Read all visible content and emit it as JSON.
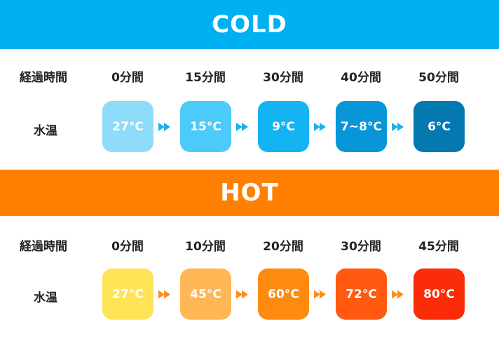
{
  "cold": {
    "title": "COLD",
    "time_header": "経過時間",
    "temp_header": "水温",
    "times": [
      "0分間",
      "15分間",
      "30分間",
      "40分間",
      "50分間"
    ],
    "temps": [
      "27°C",
      "15°C",
      "9°C",
      "7~8°C",
      "6°C"
    ],
    "colors": [
      "#8edcfa",
      "#4ccafa",
      "#14b4f3",
      "#0996d8",
      "#0479b0"
    ],
    "arrow_color": "#1ab2ee"
  },
  "hot": {
    "title": "HOT",
    "time_header": "経過時間",
    "temp_header": "水温",
    "times": [
      "0分間",
      "10分間",
      "20分間",
      "30分間",
      "45分間"
    ],
    "temps": [
      "27°C",
      "45°C",
      "60°C",
      "72°C",
      "80°C"
    ],
    "colors": [
      "#ffe357",
      "#ffb654",
      "#ff8a10",
      "#ff5a10",
      "#fa2d08"
    ],
    "arrow_color": "#ff8c1a"
  }
}
